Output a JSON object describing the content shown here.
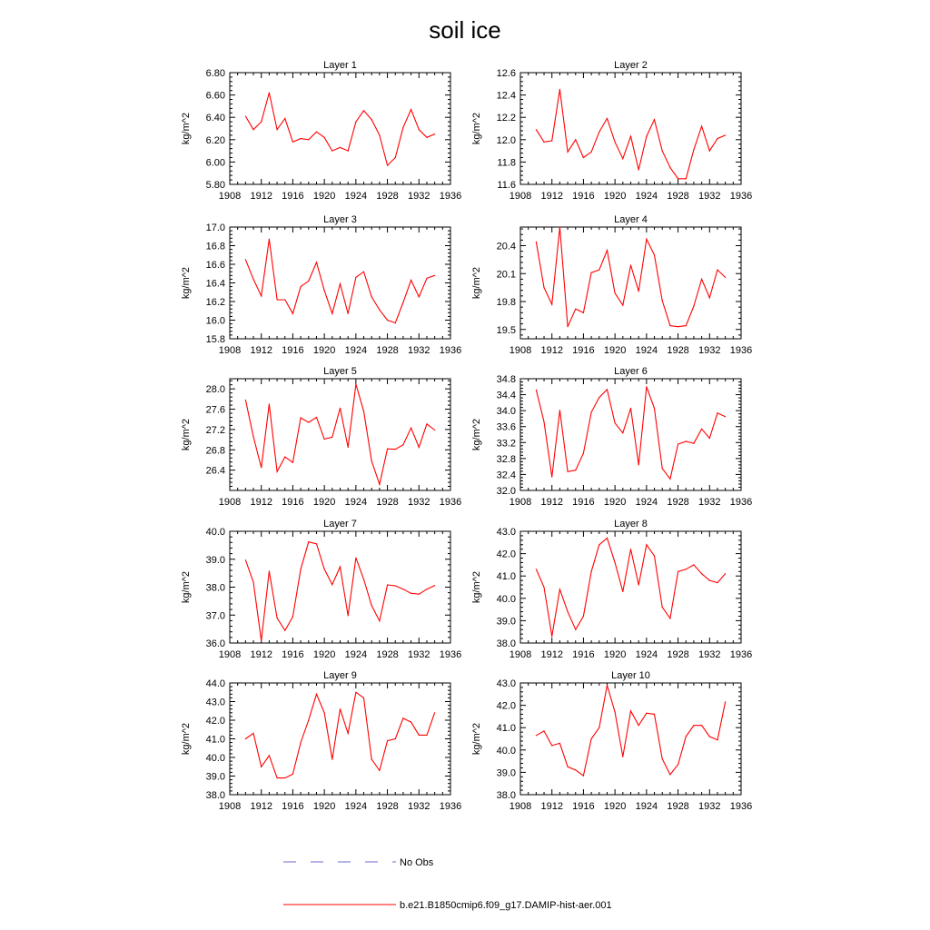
{
  "title": "soil ice",
  "legend": [
    {
      "label": "No Obs",
      "color": "#6a6ad0",
      "dash": true
    },
    {
      "label": "b.e21.B1850cmip6.f09_g17.DAMIP-hist-aer.001",
      "color": "#ff0000",
      "dash": false
    }
  ],
  "chart_data": [
    {
      "type": "line",
      "title": "Layer 1",
      "ylabel": "kg/m^2",
      "xlim": [
        1908,
        1936
      ],
      "xticks": [
        1908,
        1912,
        1916,
        1920,
        1924,
        1928,
        1932,
        1936
      ],
      "ylim": [
        5.8,
        6.8
      ],
      "yticks": [
        5.8,
        6.0,
        6.2,
        6.4,
        6.6,
        6.8
      ],
      "ydec": 2,
      "series": [
        {
          "color": "#ff0000",
          "x": [
            1910,
            1911,
            1912,
            1913,
            1914,
            1915,
            1916,
            1917,
            1918,
            1919,
            1920,
            1921,
            1922,
            1923,
            1924,
            1925,
            1926,
            1927,
            1928,
            1929,
            1930,
            1931,
            1932,
            1933,
            1934
          ],
          "values": [
            6.41,
            6.29,
            6.36,
            6.62,
            6.29,
            6.39,
            6.18,
            6.21,
            6.2,
            6.27,
            6.22,
            6.1,
            6.13,
            6.1,
            6.36,
            6.46,
            6.38,
            6.24,
            5.97,
            6.04,
            6.31,
            6.47,
            6.29,
            6.22,
            6.25
          ]
        }
      ]
    },
    {
      "type": "line",
      "title": "Layer 2",
      "ylabel": "kg/m^2",
      "xlim": [
        1908,
        1936
      ],
      "xticks": [
        1908,
        1912,
        1916,
        1920,
        1924,
        1928,
        1932,
        1936
      ],
      "ylim": [
        11.6,
        12.6
      ],
      "yticks": [
        11.6,
        11.8,
        12.0,
        12.2,
        12.4,
        12.6
      ],
      "ydec": 1,
      "series": [
        {
          "color": "#ff0000",
          "x": [
            1910,
            1911,
            1912,
            1913,
            1914,
            1915,
            1916,
            1917,
            1918,
            1919,
            1920,
            1921,
            1922,
            1923,
            1924,
            1925,
            1926,
            1927,
            1928,
            1929,
            1930,
            1931,
            1932,
            1933,
            1934
          ],
          "values": [
            12.09,
            11.98,
            11.99,
            12.45,
            11.89,
            12.0,
            11.84,
            11.89,
            12.07,
            12.19,
            11.98,
            11.83,
            12.03,
            11.73,
            12.03,
            12.18,
            11.9,
            11.75,
            11.65,
            11.65,
            11.91,
            12.12,
            11.9,
            12.01,
            12.04
          ]
        }
      ]
    },
    {
      "type": "line",
      "title": "Layer 3",
      "ylabel": "kg/m^2",
      "xlim": [
        1908,
        1936
      ],
      "xticks": [
        1908,
        1912,
        1916,
        1920,
        1924,
        1928,
        1932,
        1936
      ],
      "ylim": [
        15.8,
        17.0
      ],
      "yticks": [
        15.8,
        16.0,
        16.2,
        16.4,
        16.6,
        16.8,
        17.0
      ],
      "ydec": 1,
      "series": [
        {
          "color": "#ff0000",
          "x": [
            1910,
            1911,
            1912,
            1913,
            1914,
            1915,
            1916,
            1917,
            1918,
            1919,
            1920,
            1921,
            1922,
            1923,
            1924,
            1925,
            1926,
            1927,
            1928,
            1929,
            1930,
            1931,
            1932,
            1933,
            1934
          ],
          "values": [
            16.65,
            16.44,
            16.26,
            16.87,
            16.22,
            16.22,
            16.07,
            16.36,
            16.42,
            16.62,
            16.32,
            16.07,
            16.39,
            16.07,
            16.46,
            16.52,
            16.25,
            16.11,
            16.0,
            15.97,
            16.19,
            16.43,
            16.25,
            16.45,
            16.48
          ]
        }
      ]
    },
    {
      "type": "line",
      "title": "Layer 4",
      "ylabel": "kg/m^2",
      "xlim": [
        1908,
        1936
      ],
      "xticks": [
        1908,
        1912,
        1916,
        1920,
        1924,
        1928,
        1932,
        1936
      ],
      "ylim": [
        19.4,
        20.6
      ],
      "yticks": [
        19.5,
        19.8,
        20.1,
        20.4
      ],
      "ydec": 1,
      "series": [
        {
          "color": "#ff0000",
          "x": [
            1910,
            1911,
            1912,
            1913,
            1914,
            1915,
            1916,
            1917,
            1918,
            1919,
            1920,
            1921,
            1922,
            1923,
            1924,
            1925,
            1926,
            1927,
            1928,
            1929,
            1930,
            1931,
            1932,
            1933,
            1934
          ],
          "values": [
            20.44,
            19.95,
            19.77,
            20.6,
            19.53,
            19.72,
            19.68,
            20.11,
            20.14,
            20.35,
            19.89,
            19.76,
            20.19,
            19.91,
            20.47,
            20.3,
            19.81,
            19.54,
            19.53,
            19.54,
            19.75,
            20.04,
            19.84,
            20.14,
            20.06
          ]
        }
      ]
    },
    {
      "type": "line",
      "title": "Layer 5",
      "ylabel": "kg/m^2",
      "xlim": [
        1908,
        1936
      ],
      "xticks": [
        1908,
        1912,
        1916,
        1920,
        1924,
        1928,
        1932,
        1936
      ],
      "ylim": [
        26.0,
        28.2
      ],
      "yticks": [
        26.4,
        26.8,
        27.2,
        27.6,
        28.0
      ],
      "ydec": 1,
      "series": [
        {
          "color": "#ff0000",
          "x": [
            1910,
            1911,
            1912,
            1913,
            1914,
            1915,
            1916,
            1917,
            1918,
            1919,
            1920,
            1921,
            1922,
            1923,
            1924,
            1925,
            1926,
            1927,
            1928,
            1929,
            1930,
            1931,
            1932,
            1933,
            1934
          ],
          "values": [
            27.78,
            27.06,
            26.45,
            27.7,
            26.37,
            26.66,
            26.55,
            27.43,
            27.34,
            27.44,
            27.01,
            27.05,
            27.62,
            26.85,
            28.09,
            27.56,
            26.58,
            26.12,
            26.82,
            26.81,
            26.9,
            27.23,
            26.85,
            27.31,
            27.19
          ]
        }
      ]
    },
    {
      "type": "line",
      "title": "Layer 6",
      "ylabel": "kg/m^2",
      "xlim": [
        1908,
        1936
      ],
      "xticks": [
        1908,
        1912,
        1916,
        1920,
        1924,
        1928,
        1932,
        1936
      ],
      "ylim": [
        32.0,
        34.8
      ],
      "yticks": [
        32.0,
        32.4,
        32.8,
        33.2,
        33.6,
        34.0,
        34.4,
        34.8
      ],
      "ydec": 1,
      "series": [
        {
          "color": "#ff0000",
          "x": [
            1910,
            1911,
            1912,
            1913,
            1914,
            1915,
            1916,
            1917,
            1918,
            1919,
            1920,
            1921,
            1922,
            1923,
            1924,
            1925,
            1926,
            1927,
            1928,
            1929,
            1930,
            1931,
            1932,
            1933,
            1934
          ],
          "values": [
            34.52,
            33.72,
            32.34,
            34.01,
            32.47,
            32.51,
            32.93,
            33.96,
            34.33,
            34.53,
            33.69,
            33.44,
            34.06,
            32.64,
            34.6,
            34.06,
            32.55,
            32.29,
            33.16,
            33.23,
            33.18,
            33.54,
            33.31,
            33.94,
            33.85
          ]
        }
      ]
    },
    {
      "type": "line",
      "title": "Layer 7",
      "ylabel": "kg/m^2",
      "xlim": [
        1908,
        1936
      ],
      "xticks": [
        1908,
        1912,
        1916,
        1920,
        1924,
        1928,
        1932,
        1936
      ],
      "ylim": [
        36.0,
        40.0
      ],
      "yticks": [
        36.0,
        37.0,
        38.0,
        39.0,
        40.0
      ],
      "ydec": 1,
      "series": [
        {
          "color": "#ff0000",
          "x": [
            1910,
            1911,
            1912,
            1913,
            1914,
            1915,
            1916,
            1917,
            1918,
            1919,
            1920,
            1921,
            1922,
            1923,
            1924,
            1925,
            1926,
            1927,
            1928,
            1929,
            1930,
            1931,
            1932,
            1933,
            1934
          ],
          "values": [
            38.97,
            38.18,
            36.08,
            38.57,
            36.89,
            36.45,
            36.94,
            38.64,
            39.62,
            39.55,
            38.65,
            38.09,
            38.73,
            36.98,
            39.05,
            38.28,
            37.34,
            36.79,
            38.08,
            38.05,
            37.93,
            37.78,
            37.75,
            37.93,
            38.06
          ]
        }
      ]
    },
    {
      "type": "line",
      "title": "Layer 8",
      "ylabel": "kg/m^2",
      "xlim": [
        1908,
        1936
      ],
      "xticks": [
        1908,
        1912,
        1916,
        1920,
        1924,
        1928,
        1932,
        1936
      ],
      "ylim": [
        38.0,
        43.0
      ],
      "yticks": [
        38.0,
        39.0,
        40.0,
        41.0,
        42.0,
        43.0
      ],
      "ydec": 1,
      "series": [
        {
          "color": "#ff0000",
          "x": [
            1910,
            1911,
            1912,
            1913,
            1914,
            1915,
            1916,
            1917,
            1918,
            1919,
            1920,
            1921,
            1922,
            1923,
            1924,
            1925,
            1926,
            1927,
            1928,
            1929,
            1930,
            1931,
            1932,
            1933,
            1934
          ],
          "values": [
            41.3,
            40.5,
            38.3,
            40.4,
            39.4,
            38.6,
            39.2,
            41.2,
            42.4,
            42.7,
            41.6,
            40.3,
            42.2,
            40.6,
            42.4,
            41.9,
            39.6,
            39.1,
            41.2,
            41.3,
            41.5,
            41.1,
            40.8,
            40.7,
            41.1
          ]
        }
      ]
    },
    {
      "type": "line",
      "title": "Layer 9",
      "ylabel": "kg/m^2",
      "xlim": [
        1908,
        1936
      ],
      "xticks": [
        1908,
        1912,
        1916,
        1920,
        1924,
        1928,
        1932,
        1936
      ],
      "ylim": [
        38.0,
        44.0
      ],
      "yticks": [
        38.0,
        39.0,
        40.0,
        41.0,
        42.0,
        43.0,
        44.0
      ],
      "ydec": 1,
      "series": [
        {
          "color": "#ff0000",
          "x": [
            1910,
            1911,
            1912,
            1913,
            1914,
            1915,
            1916,
            1917,
            1918,
            1919,
            1920,
            1921,
            1922,
            1923,
            1924,
            1925,
            1926,
            1927,
            1928,
            1929,
            1930,
            1931,
            1932,
            1933,
            1934
          ],
          "values": [
            41.0,
            41.3,
            39.5,
            40.1,
            38.9,
            38.9,
            39.1,
            40.8,
            42.0,
            43.4,
            42.4,
            39.9,
            42.6,
            41.3,
            43.5,
            43.2,
            39.9,
            39.3,
            40.9,
            41.0,
            42.1,
            41.9,
            41.2,
            41.2,
            42.4
          ]
        }
      ]
    },
    {
      "type": "line",
      "title": "Layer 10",
      "ylabel": "kg/m^2",
      "xlim": [
        1908,
        1936
      ],
      "xticks": [
        1908,
        1912,
        1916,
        1920,
        1924,
        1928,
        1932,
        1936
      ],
      "ylim": [
        38.0,
        43.0
      ],
      "yticks": [
        38.0,
        39.0,
        40.0,
        41.0,
        42.0,
        43.0
      ],
      "ydec": 1,
      "series": [
        {
          "color": "#ff0000",
          "x": [
            1910,
            1911,
            1912,
            1913,
            1914,
            1915,
            1916,
            1917,
            1918,
            1919,
            1920,
            1921,
            1922,
            1923,
            1924,
            1925,
            1926,
            1927,
            1928,
            1929,
            1930,
            1931,
            1932,
            1933,
            1934
          ],
          "values": [
            40.65,
            40.85,
            40.2,
            40.3,
            39.25,
            39.1,
            38.85,
            40.5,
            41.0,
            42.9,
            41.7,
            39.7,
            41.75,
            41.1,
            41.65,
            41.6,
            39.6,
            38.9,
            39.35,
            40.6,
            41.1,
            41.1,
            40.6,
            40.45,
            42.15
          ]
        }
      ]
    }
  ]
}
